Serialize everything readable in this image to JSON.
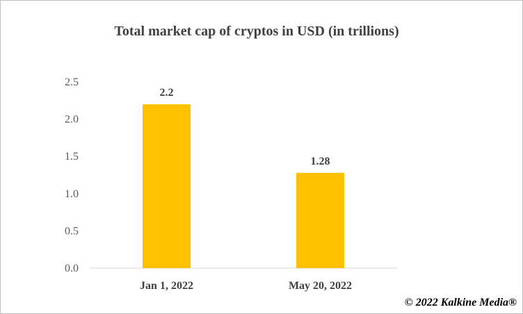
{
  "chart_data": {
    "type": "bar",
    "title": "Total market cap of cryptos in USD (in trillions)",
    "categories": [
      "Jan 1, 2022",
      "May 20, 2022"
    ],
    "values": [
      2.2,
      1.28
    ],
    "data_labels": [
      "2.2",
      "1.28"
    ],
    "y_ticks": [
      "0.0",
      "0.5",
      "1.0",
      "1.5",
      "2.0",
      "2.5"
    ],
    "ylim": [
      0,
      2.5
    ],
    "xlabel": "",
    "ylabel": "",
    "grid": false,
    "legend": "none",
    "bar_color": "#FFC000"
  },
  "watermark": "© 2022 Kalkine Media®"
}
